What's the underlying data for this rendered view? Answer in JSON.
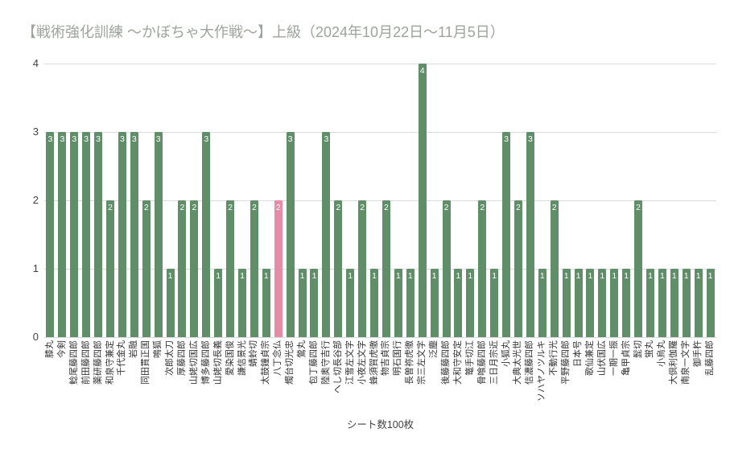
{
  "title": "【戦術強化訓練 ～かぼちゃ大作戦～】上級（2024年10月22日～11月5日）",
  "chart_data": {
    "type": "bar",
    "title": "【戦術強化訓練 ～かぼちゃ大作戦～】上級（2024年10月22日～11月5日）",
    "xlabel": "シート数100枚",
    "ylabel": "",
    "ylim": [
      0,
      4
    ],
    "yticks": [
      0,
      1,
      2,
      3,
      4
    ],
    "grid": true,
    "legend": "none",
    "bar_color": "#608e69",
    "highlight_color": "#e58ca8",
    "highlight_index": 19,
    "highlight_category": "八丁念仏",
    "value_label_color": "#ffffff",
    "categories": [
      "膝丸",
      "今剣",
      "鯰尾藤四郎",
      "前田藤四郎",
      "薬研藤四郎",
      "和泉守兼定",
      "千代金丸",
      "岩融",
      "同田貫正国",
      "鳴狐",
      "次郎太刀",
      "厚藤四郎",
      "山姥切国広",
      "博多藤四郎",
      "山姥切長義",
      "愛染国俊",
      "謙信景光",
      "蜻蛉切",
      "太鼓鐘貞宗",
      "八丁念仏",
      "燭台切光忠",
      "鶯丸",
      "包丁藤四郎",
      "陸奥守吉行",
      "へし切長谷部",
      "江雪左文字",
      "小夜左文字",
      "蜂須賀虎徹",
      "物吉貞宗",
      "明石国行",
      "長曽祢虎徹",
      "宗三左文字",
      "泛塵",
      "後藤藤四郎",
      "大和守安定",
      "篭手切江",
      "骨喰藤四郎",
      "三日月宗近",
      "小狐丸",
      "大典太光世",
      "信濃藤四郎",
      "ソハヤノツルキ",
      "不動行光",
      "平野藤四郎",
      "日本号",
      "歌仙兼定",
      "山伏国広",
      "一期一振",
      "亀甲貞宗",
      "髭切",
      "蛍丸",
      "小烏丸",
      "大倶利伽羅",
      "南泉一文字",
      "御手杵",
      "乱藤四郎"
    ],
    "values": [
      3,
      3,
      3,
      3,
      3,
      2,
      3,
      3,
      2,
      3,
      1,
      2,
      2,
      3,
      1,
      2,
      1,
      2,
      1,
      2,
      3,
      1,
      1,
      3,
      2,
      1,
      2,
      1,
      2,
      1,
      1,
      4,
      1,
      2,
      1,
      1,
      2,
      1,
      3,
      2,
      3,
      1,
      2,
      1,
      1,
      1,
      1,
      1,
      1,
      2,
      1,
      1,
      1,
      1,
      1,
      1
    ]
  }
}
